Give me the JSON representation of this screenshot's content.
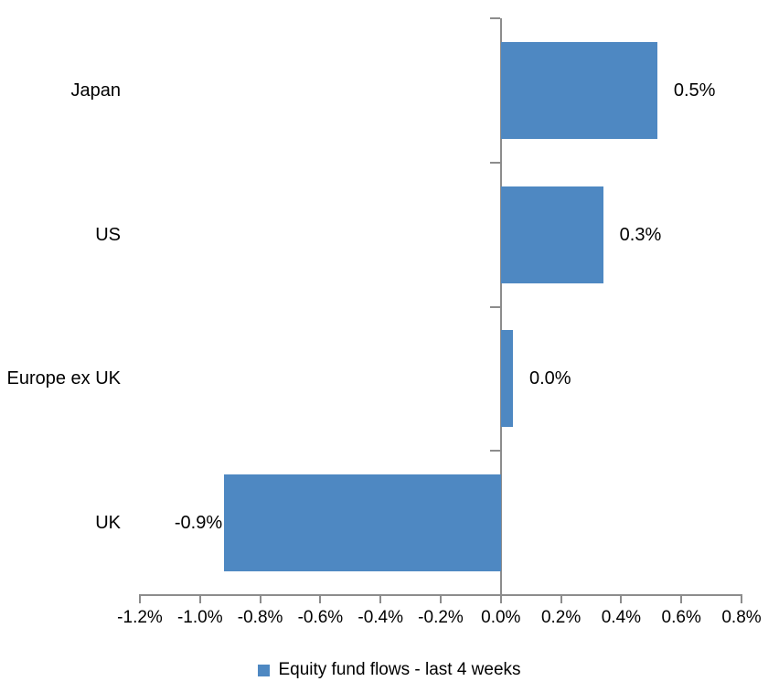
{
  "chart_data": {
    "type": "bar",
    "orientation": "horizontal",
    "categories": [
      "Japan",
      "US",
      "Europe ex UK",
      "UK"
    ],
    "values": [
      0.52,
      0.34,
      0.04,
      -0.92
    ],
    "data_labels": [
      "0.5%",
      "0.3%",
      "0.0%",
      "-0.9%"
    ],
    "series": [
      {
        "name": "Equity fund flows - last 4 weeks",
        "values": [
          0.52,
          0.34,
          0.04,
          -0.92
        ]
      }
    ],
    "legend": [
      "Equity fund flows - last 4 weeks"
    ],
    "legend_position": "bottom-center",
    "xlim": [
      -1.2,
      0.8
    ],
    "x_ticks": [
      -1.2,
      -1.0,
      -0.8,
      -0.6,
      -0.4,
      -0.2,
      0.0,
      0.2,
      0.4,
      0.6,
      0.8
    ],
    "x_tick_labels": [
      "-1.2%",
      "-1.0%",
      "-0.8%",
      "-0.6%",
      "-0.4%",
      "-0.2%",
      "0.0%",
      "0.2%",
      "0.4%",
      "0.6%",
      "0.8%"
    ],
    "xlabel": "",
    "ylabel": "",
    "grid": false,
    "colors": {
      "bar": "#4E88C2",
      "axis": "#8C8C8C",
      "text": "#000000",
      "background": "#FFFFFF"
    }
  }
}
